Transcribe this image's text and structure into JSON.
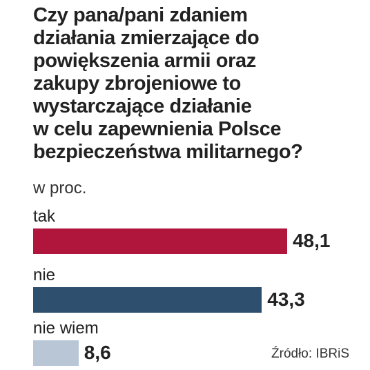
{
  "title_lines": [
    "Czy pana/pani zdaniem",
    "działania zmierzające do",
    "powiększenia armii oraz",
    "zakupy zbrojeniowe to",
    "wystarczające działanie",
    "w celu zapewnienia Polsce",
    "bezpieczeństwa militarnego?"
  ],
  "subtitle": "w proc.",
  "source": "Źródło: IBRiS",
  "chart_data": {
    "type": "bar",
    "orientation": "horizontal",
    "categories": [
      "tak",
      "nie",
      "nie wiem"
    ],
    "values": [
      48.1,
      43.3,
      8.6
    ],
    "value_labels": [
      "48,1",
      "43,3",
      "8,6"
    ],
    "colors": [
      "#b0153c",
      "#2e4f6d",
      "#b9c6d5"
    ],
    "grid": false,
    "legend": "none"
  }
}
